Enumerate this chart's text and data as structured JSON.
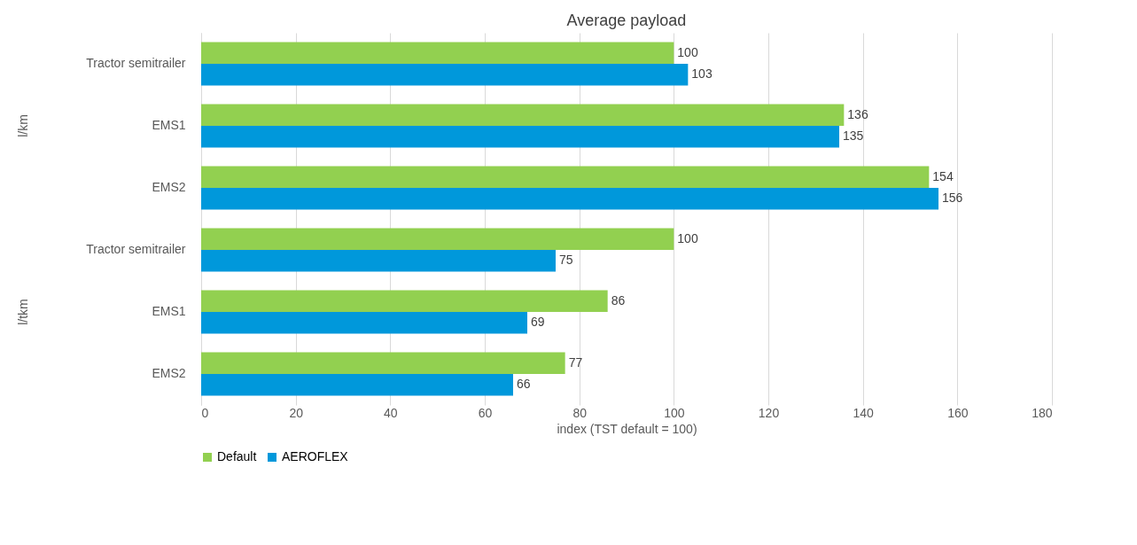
{
  "chart_data": {
    "type": "bar",
    "orientation": "horizontal",
    "title": "Average payload",
    "xlabel": "index (TST default = 100)",
    "categories": [
      "Tractor semitrailer",
      "EMS1",
      "EMS2",
      "Tractor semitrailer",
      "EMS1",
      "EMS2"
    ],
    "series": [
      {
        "name": "Default",
        "color": "#92d050",
        "values": [
          100,
          136,
          154,
          100,
          86,
          77
        ]
      },
      {
        "name": "AEROFLEX",
        "color": "#0098db",
        "values": [
          103,
          135,
          156,
          75,
          69,
          66
        ]
      }
    ],
    "annotations": [
      "l/km",
      "l/tkm"
    ],
    "xlim": [
      0,
      180
    ],
    "xticks": [
      0,
      20,
      40,
      60,
      80,
      100,
      120,
      140,
      160,
      180
    ],
    "grid": "x",
    "legend": "bottom",
    "data_labels": true
  }
}
